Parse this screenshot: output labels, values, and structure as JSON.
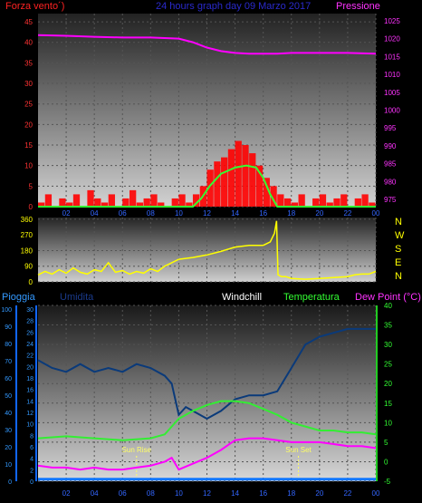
{
  "header": {
    "left_label": "Forza vento´)",
    "title": "24 hours graph day  09 Marzo 2017",
    "right_label": "Pressione"
  },
  "lower_header": {
    "rain": "Pioggia",
    "humidity": "Umidita",
    "windchill": "Windchill",
    "temperature": "Temperatura",
    "dewpoint": "Dew Point (°C)"
  },
  "colors": {
    "pressure": "#ff00ff",
    "wind": "#ff0000",
    "solar": "#33ff33",
    "direction": "#ffff00",
    "humidity": "#0a3a7a",
    "temperature": "#33ee33",
    "dewpoint": "#ff00ff",
    "rain": "#1177ff",
    "axis_text_red": "#ff3333",
    "axis_text_magenta": "#ff33ff",
    "axis_text_blue": "#3399ff",
    "axis_text_green": "#33ff33",
    "axis_text_yellow": "#ffff00"
  },
  "chart_data": [
    {
      "type": "line",
      "name": "wind-pressure",
      "x_ticks": [
        "02",
        "04",
        "06",
        "08",
        "10",
        "12",
        "14",
        "16",
        "18",
        "20",
        "22",
        "00"
      ],
      "left_axis": {
        "ticks": [
          0,
          5,
          10,
          15,
          20,
          25,
          30,
          35,
          40,
          45
        ],
        "range": [
          0,
          47
        ]
      },
      "right_axis": {
        "ticks": [
          975,
          980,
          985,
          990,
          995,
          1000,
          1005,
          1010,
          1015,
          1020,
          1025
        ],
        "range": [
          973,
          1027
        ]
      },
      "series": [
        {
          "name": "Pressione",
          "axis": "right",
          "x": [
            0,
            2,
            4,
            6,
            8,
            10,
            11,
            12,
            13,
            14,
            15,
            16,
            17,
            18,
            20,
            22,
            24
          ],
          "values": [
            1021,
            1020.8,
            1020.5,
            1020.3,
            1020.3,
            1020,
            1019,
            1017.5,
            1016.5,
            1016,
            1015.8,
            1015.8,
            1015.8,
            1016,
            1016,
            1016,
            1015.8
          ]
        },
        {
          "name": "solar",
          "axis": "left",
          "x": [
            0,
            11,
            11.6,
            12.2,
            13,
            14,
            14.8,
            15.5,
            16,
            16.5,
            17,
            24
          ],
          "values": [
            0,
            0,
            2,
            5,
            8,
            9.5,
            10,
            9.5,
            7,
            3,
            0,
            0
          ]
        },
        {
          "name": "Forza vento",
          "axis": "left",
          "x": [
            0,
            0.5,
            1,
            1.5,
            2,
            2.5,
            3,
            3.5,
            4,
            4.5,
            5,
            5.5,
            6,
            6.5,
            7,
            7.5,
            8,
            8.5,
            9,
            9.5,
            10,
            10.5,
            11,
            11.5,
            12,
            12.5,
            13,
            13.5,
            14,
            14.5,
            15,
            15.5,
            16,
            16.5,
            17,
            17.5,
            18,
            18.5,
            19,
            19.5,
            20,
            20.5,
            21,
            21.5,
            22,
            22.5,
            23,
            23.5,
            24
          ],
          "values": [
            1,
            3,
            0,
            2,
            1,
            3,
            0,
            4,
            2,
            1,
            3,
            0,
            2,
            4,
            1,
            2,
            3,
            1,
            0,
            2,
            3,
            1,
            3,
            5,
            9,
            11,
            12,
            14,
            16,
            15,
            13,
            10,
            7,
            5,
            3,
            2,
            1,
            3,
            0,
            2,
            3,
            1,
            2,
            3,
            0,
            2,
            3,
            1,
            2
          ]
        }
      ]
    },
    {
      "type": "line",
      "name": "wind-direction",
      "left_axis": {
        "ticks": [
          0,
          90,
          180,
          270,
          360
        ],
        "range": [
          0,
          370
        ]
      },
      "right_labels": [
        "N",
        "W",
        "S",
        "E",
        "N"
      ],
      "series": [
        {
          "name": "direction",
          "x": [
            0,
            0.5,
            1,
            1.5,
            2,
            2.5,
            3,
            3.5,
            4,
            4.5,
            5,
            5.5,
            6,
            6.5,
            7,
            7.5,
            8,
            8.5,
            9,
            9.5,
            10,
            11,
            12,
            13,
            14,
            15,
            16,
            16.5,
            16.8,
            16.95,
            17.05,
            17.3,
            17.6,
            18,
            19,
            20,
            21,
            22,
            22.5,
            23,
            23.5,
            24
          ],
          "values": [
            40,
            60,
            45,
            70,
            50,
            80,
            55,
            45,
            70,
            60,
            110,
            55,
            65,
            45,
            60,
            50,
            75,
            60,
            90,
            110,
            130,
            140,
            155,
            175,
            200,
            210,
            210,
            230,
            280,
            350,
            40,
            30,
            30,
            20,
            15,
            20,
            25,
            30,
            40,
            45,
            45,
            60
          ]
        }
      ]
    },
    {
      "type": "line",
      "name": "humidity-temperature",
      "x_ticks": [
        "02",
        "04",
        "06",
        "08",
        "10",
        "12",
        "14",
        "16",
        "18",
        "20",
        "22",
        "00"
      ],
      "rain_axis": {
        "ticks": [
          0,
          10,
          20,
          30,
          40,
          50,
          60,
          70,
          80,
          90,
          100
        ]
      },
      "humidity_axis": {
        "ticks": [
          0,
          2,
          4,
          6,
          8,
          10,
          12,
          14,
          16,
          18,
          20,
          22,
          24,
          26,
          28,
          30
        ]
      },
      "temp_axis": {
        "ticks": [
          -5,
          0,
          5,
          10,
          15,
          20,
          25,
          30,
          35,
          40
        ],
        "range": [
          -5,
          40
        ]
      },
      "annotations": [
        {
          "text": "Sun Rise",
          "x": 7.0
        },
        {
          "text": "Sun Set",
          "x": 18.5
        }
      ],
      "series": [
        {
          "name": "Umidita",
          "axis": "temp",
          "x": [
            0,
            1,
            2,
            3,
            4,
            5,
            6,
            7,
            8,
            9,
            9.5,
            10,
            10.5,
            11,
            12,
            13,
            14,
            15,
            16,
            17,
            18,
            19,
            20,
            21,
            22,
            23,
            24
          ],
          "values": [
            26,
            24,
            23,
            25,
            23,
            24,
            23,
            25,
            24,
            22,
            20,
            12,
            14,
            13,
            11,
            13,
            16,
            17,
            17,
            18,
            24,
            30,
            32,
            33,
            34,
            34,
            34
          ]
        },
        {
          "name": "Temperatura",
          "axis": "temp",
          "x": [
            0,
            2,
            4,
            6,
            8,
            9,
            10,
            11,
            12,
            13,
            14,
            15,
            16,
            17,
            18,
            19,
            20,
            21,
            22,
            23,
            24
          ],
          "values": [
            6,
            6.5,
            6,
            5.5,
            6,
            7,
            11,
            13,
            14.5,
            15.5,
            15.5,
            15,
            13.5,
            12,
            10,
            9,
            8,
            8,
            7.5,
            7.5,
            7
          ]
        },
        {
          "name": "Dew Point",
          "axis": "temp",
          "x": [
            0,
            1,
            2,
            3,
            4,
            5,
            6,
            7,
            8,
            9,
            9.5,
            10,
            11,
            12,
            13,
            14,
            15,
            16,
            17,
            18,
            19,
            20,
            21,
            22,
            23,
            24
          ],
          "values": [
            -1,
            -1.5,
            -1.5,
            -2,
            -1.5,
            -2,
            -2,
            -1.5,
            -1,
            0,
            1,
            -2,
            -0.5,
            1,
            3,
            5.5,
            6,
            6,
            5.5,
            5,
            5,
            5,
            4.5,
            4,
            4,
            3.5
          ]
        },
        {
          "name": "Pioggia",
          "axis": "temp",
          "x": [
            0,
            24
          ],
          "values": [
            -4.5,
            -4.5
          ]
        }
      ]
    }
  ]
}
